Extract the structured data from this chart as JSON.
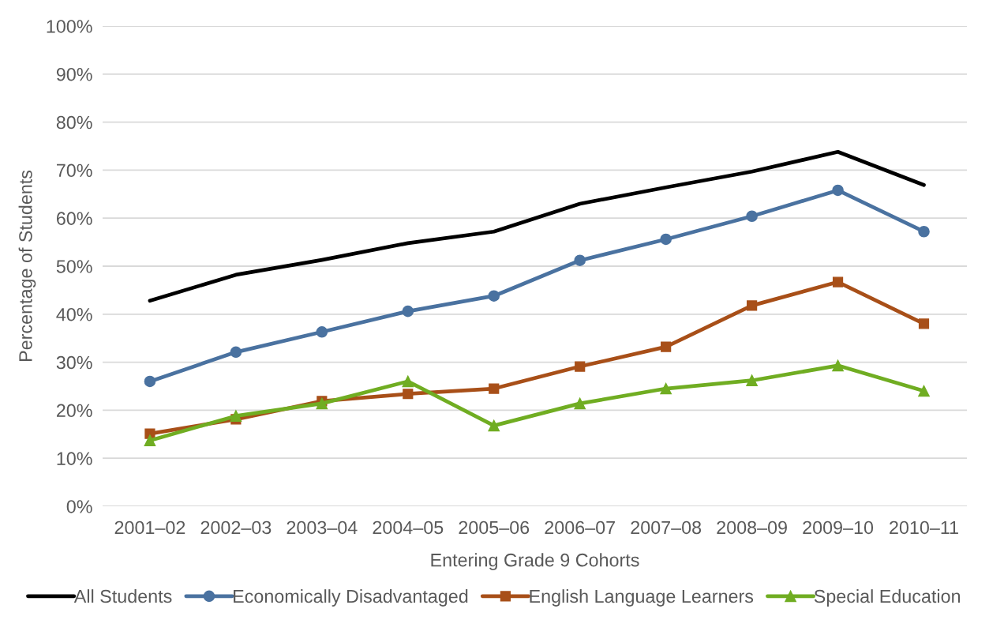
{
  "chart_data": {
    "type": "line",
    "xlabel": "Entering Grade 9 Cohorts",
    "ylabel": "Percentage of Students",
    "categories": [
      "2001–02",
      "2002–03",
      "2003–04",
      "2004–05",
      "2005–06",
      "2006–07",
      "2007–08",
      "2008–09",
      "2009–10",
      "2010–11"
    ],
    "series": [
      {
        "name": "All Students",
        "color": "#000000",
        "marker": "none",
        "values": [
          42.8,
          48.2,
          51.3,
          54.8,
          57.2,
          63.0,
          66.4,
          69.7,
          73.8,
          66.9
        ]
      },
      {
        "name": "Economically Disadvantaged",
        "color": "#4a72a0",
        "marker": "circle",
        "values": [
          26.0,
          32.1,
          36.3,
          40.6,
          43.8,
          51.2,
          55.6,
          60.4,
          65.8,
          57.2
        ]
      },
      {
        "name": "English Language Learners",
        "color": "#a84f18",
        "marker": "square",
        "values": [
          15.1,
          18.1,
          21.9,
          23.4,
          24.5,
          29.1,
          33.2,
          41.8,
          46.7,
          38.0
        ]
      },
      {
        "name": "Special Education",
        "color": "#70ad22",
        "marker": "triangle",
        "values": [
          13.7,
          18.8,
          21.4,
          26.0,
          16.8,
          21.4,
          24.5,
          26.2,
          29.3,
          24.0
        ]
      }
    ],
    "ylim": [
      0,
      100
    ],
    "yticks": [
      {
        "value": 0,
        "label": "0%"
      },
      {
        "value": 10,
        "label": "10%"
      },
      {
        "value": 20,
        "label": "20%"
      },
      {
        "value": 30,
        "label": "30%"
      },
      {
        "value": 40,
        "label": "40%"
      },
      {
        "value": 50,
        "label": "50%"
      },
      {
        "value": 60,
        "label": "60%"
      },
      {
        "value": 70,
        "label": "70%"
      },
      {
        "value": 80,
        "label": "80%"
      },
      {
        "value": 90,
        "label": "90%"
      },
      {
        "value": 100,
        "label": "100%"
      }
    ],
    "grid": "y",
    "legend": "bottom",
    "line_style": "solid"
  }
}
